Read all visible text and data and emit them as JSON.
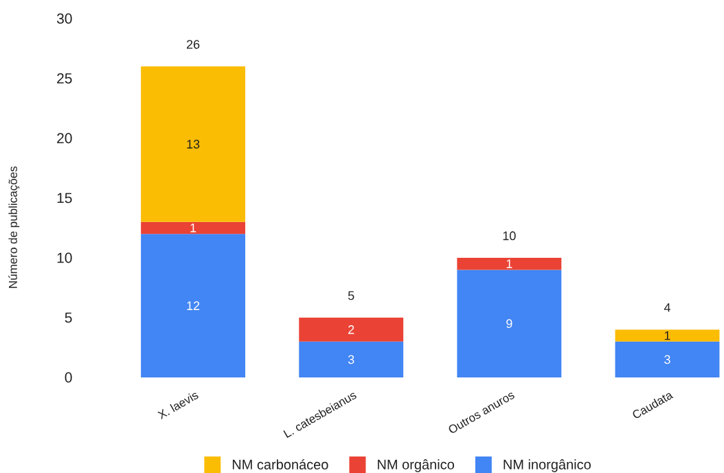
{
  "chart_data": {
    "type": "bar",
    "stacked": true,
    "ylabel": "Número de publicações",
    "categories": [
      "X. laevis",
      "L. catesbeianus",
      "Outros anuros",
      "Caudata"
    ],
    "series": [
      {
        "name": "NM inorgânico",
        "color": "#4285f4",
        "values": [
          12,
          3,
          9,
          3
        ]
      },
      {
        "name": "NM orgânico",
        "color": "#ea4335",
        "values": [
          1,
          2,
          1,
          null
        ]
      },
      {
        "name": "NM carbonáceo",
        "color": "#fbbc04",
        "values": [
          13,
          null,
          null,
          1
        ]
      }
    ],
    "ylim": [
      0,
      30
    ],
    "yticks": [
      0,
      5,
      10,
      15,
      20,
      25,
      30
    ],
    "data_labels": true,
    "totals": [
      "26",
      "5",
      "10",
      "4"
    ],
    "legend": "bottom"
  }
}
